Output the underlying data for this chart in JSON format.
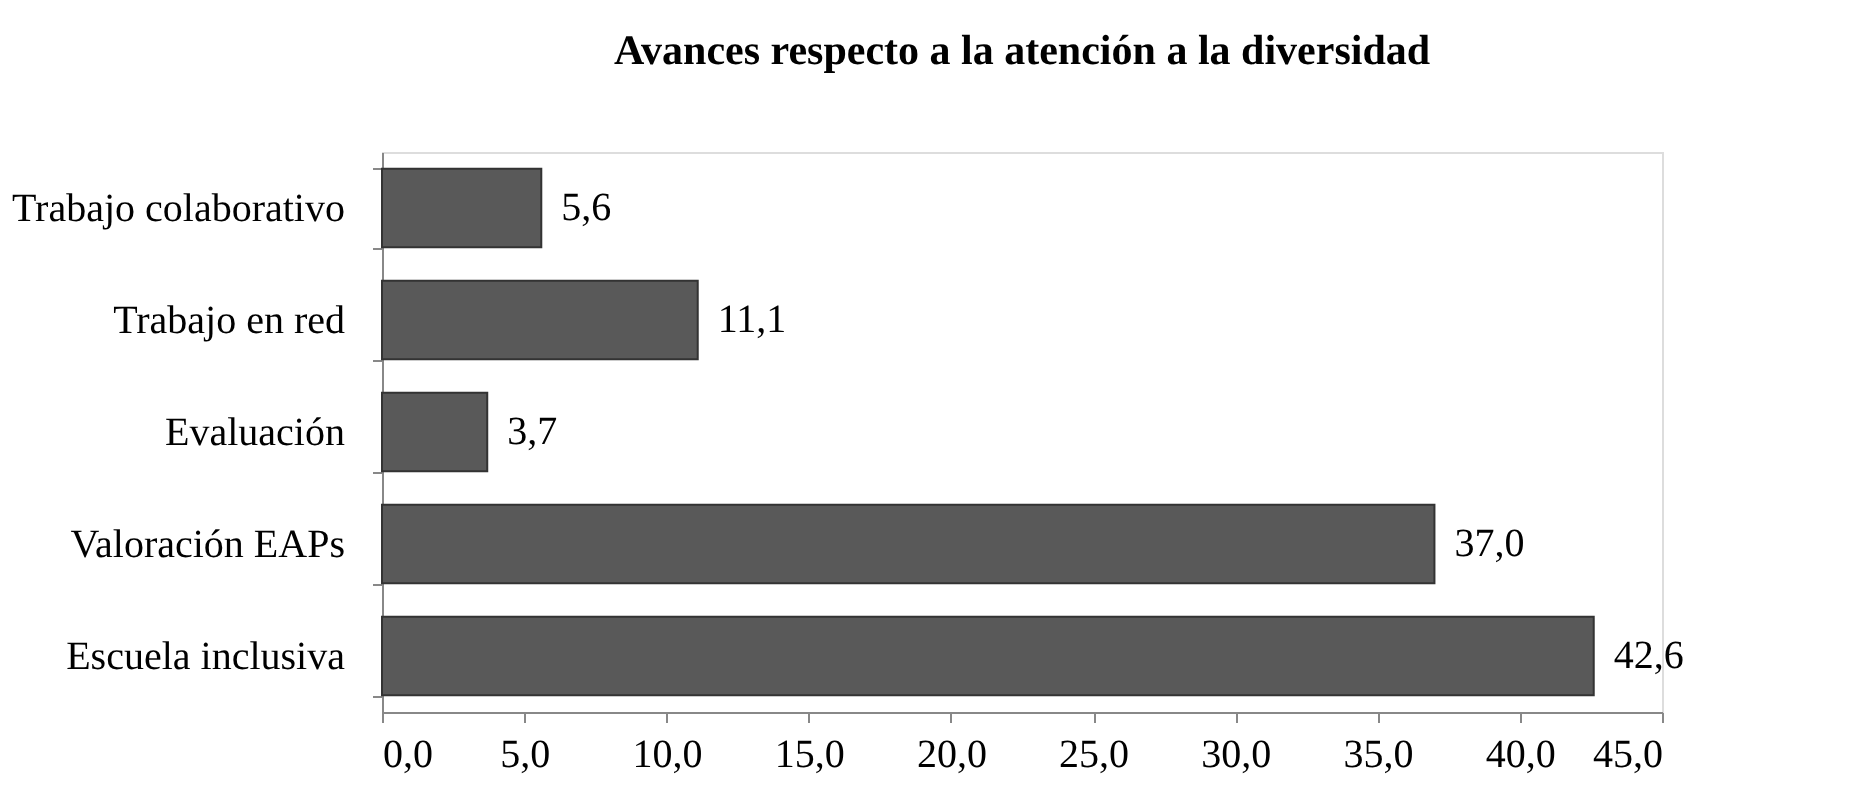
{
  "chart_data": {
    "type": "bar",
    "orientation": "horizontal",
    "title": "Avances respecto a la atención a la diversidad",
    "categories": [
      "Trabajo colaborativo",
      "Trabajo en red",
      "Evaluación",
      "Valoración EAPs",
      "Escuela inclusiva"
    ],
    "values": [
      5.6,
      11.1,
      3.7,
      37.0,
      42.6
    ],
    "value_labels": [
      "5,6",
      "11,1",
      "3,7",
      "37,0",
      "42,6"
    ],
    "color": "#595959",
    "xlim": [
      0,
      45
    ],
    "xticks": [
      {
        "value": 0,
        "label": "0,0"
      },
      {
        "value": 5,
        "label": "5,0"
      },
      {
        "value": 10,
        "label": "10,0"
      },
      {
        "value": 15,
        "label": "15,0"
      },
      {
        "value": 20,
        "label": "20,0"
      },
      {
        "value": 25,
        "label": "25,0"
      },
      {
        "value": 30,
        "label": "30,0"
      },
      {
        "value": 35,
        "label": "35,0"
      },
      {
        "value": 40,
        "label": "40,0"
      },
      {
        "value": 45,
        "label": "45,0"
      }
    ],
    "grid": false
  }
}
